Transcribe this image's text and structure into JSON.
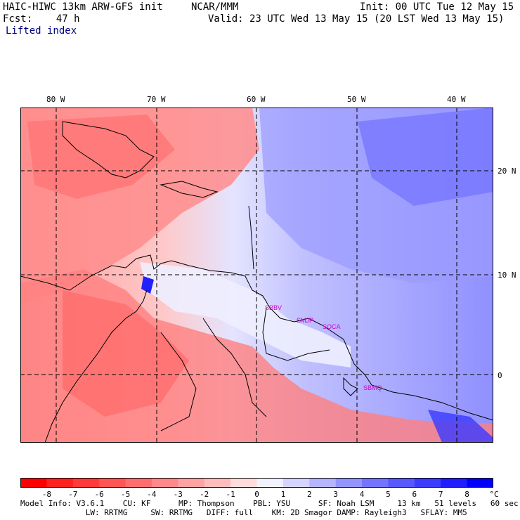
{
  "header": {
    "model": "HAIC-HIWC 13km ARW-GFS init",
    "org": "NCAR/MMM",
    "init": "Init: 00 UTC Tue 12 May 15",
    "fcst": "Fcst:    47 h",
    "valid": "Valid: 23 UTC Wed 13 May 15 (20 LST Wed 13 May 15)",
    "field": "Lifted index"
  },
  "map": {
    "lon_labels": [
      "80 W",
      "70 W",
      "60 W",
      "50 W",
      "40 W"
    ],
    "lat_labels": [
      "20 N",
      "10 N",
      "0"
    ],
    "stations": [
      "SBBV",
      "SMJP",
      "SOCA",
      "SBMQ"
    ]
  },
  "colorbar": {
    "labels": [
      "-8",
      "-7",
      "-6",
      "-5",
      "-4",
      "-3",
      "-2",
      "-1",
      "0",
      "1",
      "2",
      "3",
      "4",
      "5",
      "6",
      "7",
      "8"
    ],
    "unit": "°C",
    "colors": [
      "#ff0000",
      "#ff2020",
      "#ff3a3a",
      "#ff5555",
      "#ff6e6e",
      "#ff8888",
      "#ffa2a2",
      "#ffbcbc",
      "#ffdcdc",
      "#f2f2ff",
      "#d4d4ff",
      "#b4b4ff",
      "#9494ff",
      "#7474ff",
      "#5858ff",
      "#3c3cff",
      "#1e1eff",
      "#0000ff"
    ]
  },
  "footer": {
    "line1": "Model Info: V3.6.1    CU: KF      MP: Thompson    PBL: YSU      SF: Noah LSM     13 km   51 levels   60 sec",
    "line2": "              LW: RRTMG     SW: RRTMG   DIFF: full    KM: 2D Smagor DAMP: Rayleigh3   SFLAY: MM5"
  }
}
